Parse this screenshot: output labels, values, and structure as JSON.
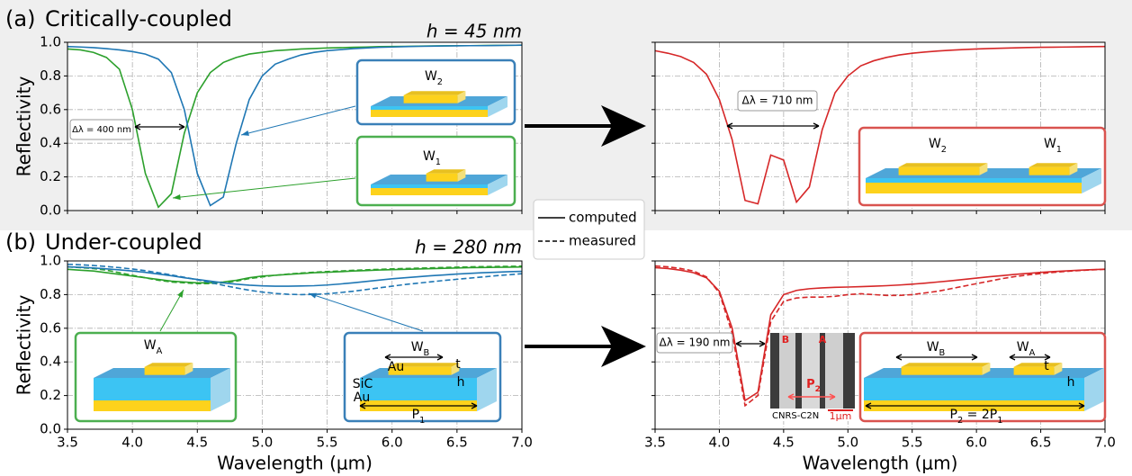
{
  "rows": [
    {
      "label": "(a)",
      "title": "Critically-coupled",
      "thickness": "h = 45 nm"
    },
    {
      "label": "(b)",
      "title": "Under-coupled",
      "thickness": "h = 280 nm"
    }
  ],
  "legend": [
    {
      "label": "computed",
      "style": "solid"
    },
    {
      "label": "measured",
      "style": "dashed"
    }
  ],
  "sem_image": {
    "labels": [
      "B",
      "A"
    ],
    "period": [
      "P",
      "2"
    ],
    "caption": "CNRS-C2N",
    "scale": "1µm"
  },
  "chart_data": [
    {
      "type": "line",
      "xlim": [
        3.5,
        7.0
      ],
      "ylim": [
        0,
        1
      ],
      "grid": true,
      "ylabel": "Reflectivity",
      "xticks": [
        3.5,
        4,
        4.5,
        5,
        5.5,
        6,
        6.5,
        7
      ],
      "yticks": [
        {
          "value": 0,
          "label": "0.0"
        },
        0.2,
        0.4,
        0.6,
        0.8,
        {
          "value": 1,
          "label": "1.0"
        }
      ],
      "annotation": "Δλ = 400 nm",
      "inset_labels": [
        [
          "W",
          "2"
        ],
        [
          "W",
          "1"
        ]
      ],
      "x": [
        3.5,
        3.6,
        3.7,
        3.8,
        3.9,
        4.0,
        4.1,
        4.2,
        4.3,
        4.4,
        4.5,
        4.6,
        4.7,
        4.8,
        4.9,
        5.0,
        5.1,
        5.2,
        5.3,
        5.4,
        5.5,
        5.6,
        5.7,
        5.8,
        5.9,
        6.0,
        6.1,
        6.2,
        6.3,
        6.4,
        6.5,
        6.6,
        6.7,
        6.8,
        6.9,
        7.0
      ],
      "series": [
        {
          "color": "#2ca02c",
          "style": "solid",
          "values": [
            0.96,
            0.955,
            0.94,
            0.91,
            0.84,
            0.6,
            0.22,
            0.02,
            0.1,
            0.46,
            0.7,
            0.82,
            0.88,
            0.91,
            0.93,
            0.94,
            0.95,
            0.955,
            0.96,
            0.963,
            0.966,
            0.968,
            0.97,
            0.972,
            0.974,
            0.975,
            0.976,
            0.977,
            0.978,
            0.979,
            0.98,
            0.98,
            0.981,
            0.982,
            0.982,
            0.983
          ]
        },
        {
          "color": "#1f77b4",
          "style": "solid",
          "values": [
            0.975,
            0.972,
            0.968,
            0.962,
            0.955,
            0.945,
            0.93,
            0.9,
            0.82,
            0.6,
            0.22,
            0.03,
            0.08,
            0.4,
            0.66,
            0.8,
            0.87,
            0.9,
            0.925,
            0.94,
            0.95,
            0.956,
            0.962,
            0.966,
            0.97,
            0.972,
            0.974,
            0.976,
            0.977,
            0.978,
            0.979,
            0.98,
            0.98,
            0.981,
            0.982,
            0.983
          ]
        }
      ]
    },
    {
      "type": "line",
      "xlim": [
        3.5,
        7.0
      ],
      "ylim": [
        0,
        1
      ],
      "grid": true,
      "xticks": [
        3.5,
        4,
        4.5,
        5,
        5.5,
        6,
        6.5,
        7
      ],
      "yticks": [
        0,
        0.2,
        0.4,
        0.6,
        0.8,
        1
      ],
      "annotation": "Δλ = 710 nm",
      "inset_labels": [
        [
          "W",
          "2"
        ],
        [
          "W",
          "1"
        ]
      ],
      "x": [
        3.5,
        3.6,
        3.7,
        3.8,
        3.9,
        4.0,
        4.1,
        4.2,
        4.3,
        4.4,
        4.5,
        4.6,
        4.7,
        4.8,
        4.9,
        5.0,
        5.1,
        5.2,
        5.3,
        5.4,
        5.5,
        5.6,
        5.7,
        5.8,
        5.9,
        6.0,
        6.1,
        6.2,
        6.3,
        6.4,
        6.5,
        6.6,
        6.7,
        6.8,
        6.9,
        7.0
      ],
      "series": [
        {
          "color": "#d62728",
          "style": "solid",
          "values": [
            0.95,
            0.935,
            0.915,
            0.88,
            0.81,
            0.66,
            0.42,
            0.06,
            0.04,
            0.33,
            0.3,
            0.05,
            0.14,
            0.48,
            0.7,
            0.8,
            0.86,
            0.89,
            0.91,
            0.925,
            0.935,
            0.942,
            0.948,
            0.953,
            0.957,
            0.96,
            0.963,
            0.965,
            0.967,
            0.969,
            0.97,
            0.971,
            0.972,
            0.973,
            0.974,
            0.975
          ]
        }
      ]
    },
    {
      "type": "line",
      "xlim": [
        3.5,
        7.0
      ],
      "ylim": [
        0,
        1
      ],
      "grid": true,
      "xlabel": "Wavelength (μm)",
      "ylabel": "Reflectivity",
      "xticks": [
        3.5,
        {
          "value": 4,
          "label": "4.0"
        },
        4.5,
        {
          "value": 5,
          "label": "5.0"
        },
        5.5,
        {
          "value": 6,
          "label": "6.0"
        },
        6.5,
        {
          "value": 7,
          "label": "7.0"
        }
      ],
      "yticks": [
        {
          "value": 0,
          "label": "0.0"
        },
        0.2,
        0.4,
        0.6,
        0.8,
        {
          "value": 1,
          "label": "1.0"
        }
      ],
      "inset_labels": [
        [
          "W",
          "A"
        ],
        [
          "W",
          "B"
        ],
        [
          "Au"
        ],
        [
          "t"
        ],
        [
          "SiC"
        ],
        [
          "h"
        ],
        [
          "Au"
        ],
        [
          "P",
          "1"
        ]
      ],
      "x": [
        3.5,
        3.6,
        3.7,
        3.8,
        3.9,
        4.0,
        4.1,
        4.2,
        4.3,
        4.4,
        4.5,
        4.6,
        4.7,
        4.8,
        4.9,
        5.0,
        5.1,
        5.2,
        5.3,
        5.4,
        5.5,
        5.6,
        5.7,
        5.8,
        5.9,
        6.0,
        6.1,
        6.2,
        6.3,
        6.4,
        6.5,
        6.6,
        6.7,
        6.8,
        6.9,
        7.0
      ],
      "series": [
        {
          "color": "#2ca02c",
          "style": "solid",
          "values": [
            0.95,
            0.945,
            0.94,
            0.93,
            0.92,
            0.91,
            0.9,
            0.89,
            0.88,
            0.875,
            0.87,
            0.87,
            0.875,
            0.885,
            0.9,
            0.91,
            0.915,
            0.92,
            0.925,
            0.93,
            0.933,
            0.936,
            0.94,
            0.943,
            0.946,
            0.948,
            0.95,
            0.952,
            0.954,
            0.956,
            0.958,
            0.96,
            0.961,
            0.962,
            0.963,
            0.964
          ]
        },
        {
          "color": "#2ca02c",
          "style": "dashed",
          "values": [
            0.965,
            0.96,
            0.955,
            0.945,
            0.93,
            0.915,
            0.9,
            0.885,
            0.875,
            0.87,
            0.865,
            0.865,
            0.87,
            0.88,
            0.895,
            0.905,
            0.915,
            0.922,
            0.928,
            0.933,
            0.937,
            0.94,
            0.944,
            0.947,
            0.95,
            0.953,
            0.955,
            0.957,
            0.959,
            0.961,
            0.963,
            0.965,
            0.966,
            0.967,
            0.968,
            0.969
          ]
        },
        {
          "color": "#1f77b4",
          "style": "solid",
          "values": [
            0.965,
            0.962,
            0.958,
            0.953,
            0.947,
            0.94,
            0.932,
            0.922,
            0.912,
            0.9,
            0.89,
            0.88,
            0.87,
            0.862,
            0.856,
            0.852,
            0.85,
            0.85,
            0.851,
            0.853,
            0.857,
            0.863,
            0.87,
            0.878,
            0.886,
            0.894,
            0.9,
            0.906,
            0.912,
            0.917,
            0.922,
            0.926,
            0.93,
            0.933,
            0.936,
            0.938
          ]
        },
        {
          "color": "#1f77b4",
          "style": "dashed",
          "values": [
            0.98,
            0.977,
            0.973,
            0.967,
            0.96,
            0.952,
            0.942,
            0.93,
            0.917,
            0.903,
            0.888,
            0.872,
            0.855,
            0.84,
            0.826,
            0.815,
            0.807,
            0.802,
            0.8,
            0.801,
            0.805,
            0.812,
            0.82,
            0.83,
            0.84,
            0.85,
            0.86,
            0.868,
            0.876,
            0.884,
            0.891,
            0.898,
            0.905,
            0.912,
            0.918,
            0.924
          ]
        }
      ]
    },
    {
      "type": "line",
      "xlim": [
        3.5,
        7.0
      ],
      "ylim": [
        0,
        1
      ],
      "grid": true,
      "xlabel": "Wavelength (μm)",
      "xticks": [
        3.5,
        {
          "value": 4,
          "label": "4.0"
        },
        4.5,
        {
          "value": 5,
          "label": "5.0"
        },
        5.5,
        {
          "value": 6,
          "label": "6.0"
        },
        6.5,
        {
          "value": 7,
          "label": "7.0"
        }
      ],
      "yticks": [
        0,
        0.2,
        0.4,
        0.6,
        0.8,
        1
      ],
      "annotation": "Δλ = 190 nm",
      "inset_labels": [
        [
          "W",
          "B"
        ],
        [
          "W",
          "A"
        ],
        [
          "t"
        ],
        [
          "h"
        ],
        [
          "P",
          "2",
          " = 2P",
          "1"
        ]
      ],
      "x": [
        3.5,
        3.6,
        3.7,
        3.8,
        3.9,
        4.0,
        4.1,
        4.2,
        4.3,
        4.4,
        4.5,
        4.6,
        4.7,
        4.8,
        4.9,
        5.0,
        5.1,
        5.2,
        5.3,
        5.4,
        5.5,
        5.6,
        5.7,
        5.8,
        5.9,
        6.0,
        6.1,
        6.2,
        6.3,
        6.4,
        6.5,
        6.6,
        6.7,
        6.8,
        6.9,
        7.0
      ],
      "series": [
        {
          "color": "#d62728",
          "style": "solid",
          "values": [
            0.96,
            0.955,
            0.945,
            0.93,
            0.9,
            0.82,
            0.6,
            0.17,
            0.22,
            0.68,
            0.8,
            0.825,
            0.835,
            0.84,
            0.843,
            0.845,
            0.847,
            0.85,
            0.853,
            0.857,
            0.862,
            0.868,
            0.875,
            0.882,
            0.89,
            0.898,
            0.906,
            0.913,
            0.92,
            0.926,
            0.932,
            0.937,
            0.941,
            0.945,
            0.948,
            0.951
          ]
        },
        {
          "color": "#d62728",
          "style": "dashed",
          "values": [
            0.97,
            0.965,
            0.955,
            0.94,
            0.905,
            0.81,
            0.57,
            0.14,
            0.2,
            0.64,
            0.76,
            0.78,
            0.785,
            0.785,
            0.79,
            0.8,
            0.805,
            0.8,
            0.795,
            0.795,
            0.8,
            0.81,
            0.82,
            0.835,
            0.85,
            0.865,
            0.88,
            0.895,
            0.907,
            0.917,
            0.925,
            0.932,
            0.938,
            0.943,
            0.947,
            0.95
          ]
        }
      ]
    }
  ]
}
